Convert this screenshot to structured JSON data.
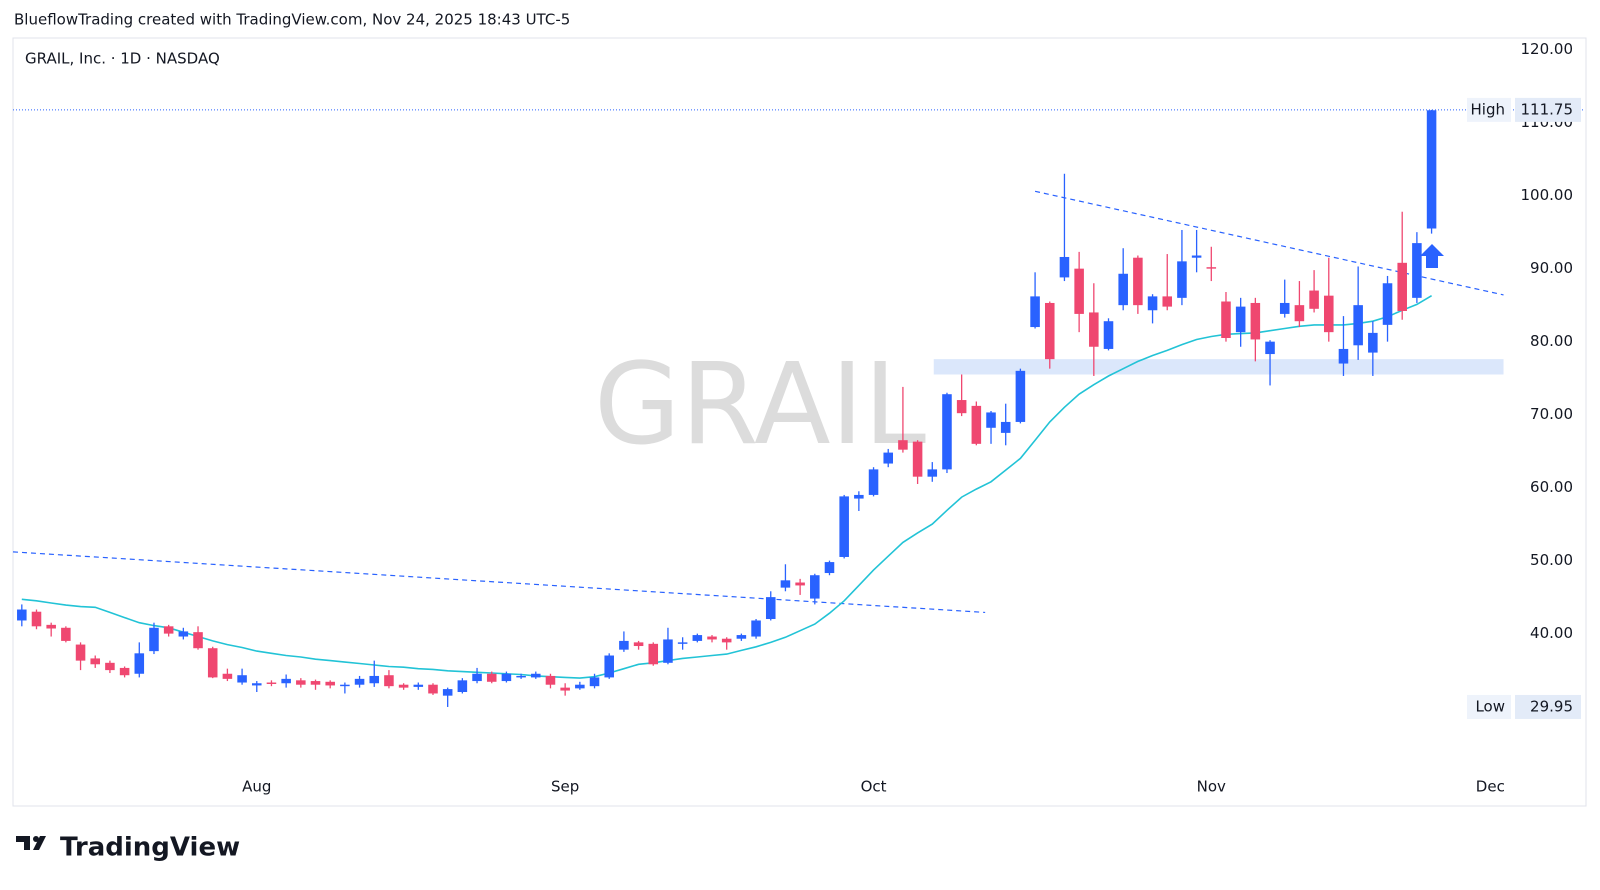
{
  "chart_data": {
    "type": "candlestick",
    "attribution": "BlueflowTrading created with TradingView.com, Nov 24, 2025 18:43 UTC-5",
    "title": "GRAIL, Inc. · 1D · NASDAQ",
    "watermark": "GRAIL",
    "branding": "TradingView",
    "up_color": "#2962ff",
    "down_color": "#ef4770",
    "open": [
      41.8,
      43,
      41.2,
      40.8,
      38.5,
      36.6,
      36,
      35.3,
      34.5,
      37.6,
      41,
      39.6,
      40.2,
      38,
      34.5,
      33.3,
      32.9,
      33.3,
      33.2,
      33.6,
      33.5,
      33.4,
      32.8,
      33,
      33.2,
      34.3,
      33,
      32.7,
      33,
      31.5,
      32,
      33.5,
      34.5,
      33.5,
      34,
      34,
      34.2,
      32.6,
      32.5,
      32.8,
      34,
      37.8,
      38.8,
      38.6,
      36,
      38.6,
      39,
      39.6,
      39.3,
      39.3,
      39.6,
      42,
      46.3,
      47,
      44.8,
      48.3,
      50.5,
      58.5,
      59,
      63.3,
      66.5,
      66.3,
      61.5,
      62.5,
      72,
      71.2,
      68.2,
      67.5,
      69,
      82,
      85.3,
      88.8,
      90,
      84,
      79,
      85,
      91.5,
      84.3,
      86.2,
      86,
      91.5,
      90.2,
      85.5,
      81.3,
      85.3,
      78.3,
      83.8,
      85,
      87,
      86.3,
      77,
      79.5,
      78.5,
      82.3,
      90.8,
      86,
      95.5
    ],
    "high": [
      44,
      43.3,
      41.5,
      41,
      38.8,
      37,
      36.3,
      35.5,
      38.8,
      41.5,
      41.2,
      40.8,
      41,
      38.2,
      35.2,
      35.2,
      33.5,
      33.6,
      34.4,
      33.9,
      33.7,
      33.6,
      33.3,
      34.2,
      36.3,
      35,
      33.2,
      33.3,
      33.2,
      32.6,
      33.9,
      35.3,
      34.8,
      34.8,
      34.5,
      34.8,
      34.5,
      33.2,
      33.4,
      34.5,
      37.3,
      40.3,
      39,
      38.8,
      40.8,
      39.5,
      40,
      39.8,
      39.5,
      40,
      42,
      45.8,
      49.5,
      47.5,
      48.2,
      50,
      59,
      59.5,
      62.8,
      65.3,
      73.8,
      66.5,
      63.5,
      73,
      75.5,
      71.8,
      70.5,
      71.5,
      76.3,
      89.5,
      85.5,
      103,
      92.3,
      88,
      83.2,
      92.8,
      91.8,
      86.5,
      92,
      95.3,
      95.3,
      93,
      86.8,
      86,
      86,
      80.2,
      88.5,
      88.3,
      89.8,
      91.5,
      83.5,
      90.3,
      82.8,
      89,
      97.8,
      95,
      111.75
    ],
    "low": [
      41,
      40.6,
      39.6,
      38.8,
      35,
      35.3,
      34.6,
      34,
      34,
      37.2,
      39.6,
      39.2,
      37.8,
      33.9,
      33.5,
      33,
      32,
      32.8,
      32.6,
      32.6,
      32.3,
      32.5,
      31.8,
      32.6,
      32.7,
      32.5,
      32.3,
      32.3,
      31.6,
      29.95,
      31.8,
      33.2,
      33.2,
      33.3,
      33.8,
      33.8,
      32.5,
      31.5,
      32.3,
      32.5,
      33.8,
      37.5,
      37.8,
      35.6,
      35.8,
      37.8,
      38.8,
      38.8,
      37.8,
      39,
      39.3,
      41.8,
      45.8,
      45.3,
      44,
      48,
      50.3,
      56.8,
      58.8,
      62.8,
      64.8,
      60.5,
      60.8,
      62,
      69.8,
      65.8,
      66,
      65.8,
      68.8,
      81.8,
      76.3,
      88.3,
      81.3,
      75.3,
      78.8,
      84.3,
      83.8,
      82.5,
      84.3,
      85,
      89.5,
      88.3,
      80,
      79.3,
      77.3,
      74,
      83.3,
      82,
      84,
      80,
      75.3,
      77.5,
      75.3,
      80,
      83,
      85.3,
      94.8
    ],
    "close": [
      43.3,
      41,
      40.7,
      39,
      36.3,
      35.8,
      35,
      34.3,
      37.3,
      40.8,
      40,
      40.3,
      38,
      34,
      33.8,
      34.3,
      33.2,
      33.1,
      33.8,
      33,
      33,
      32.9,
      33,
      33.8,
      34.2,
      32.8,
      32.6,
      33,
      31.8,
      32.4,
      33.6,
      34.5,
      33.4,
      34.5,
      34.2,
      34.5,
      33,
      32.2,
      33,
      34,
      37,
      39,
      38.3,
      35.8,
      39.2,
      38.8,
      39.8,
      39.2,
      38.8,
      39.8,
      41.8,
      45,
      47.3,
      46.6,
      48,
      49.8,
      58.8,
      59,
      62.5,
      64.8,
      65.2,
      61.5,
      62.5,
      72.8,
      70.2,
      66,
      70.3,
      69,
      76,
      86.2,
      77.6,
      91.6,
      83.8,
      79.3,
      82.8,
      89.3,
      85,
      86.2,
      84.8,
      91,
      91.8,
      90,
      80.5,
      84.8,
      80.3,
      80,
      85.3,
      82.8,
      84.5,
      81.3,
      79,
      85,
      81.2,
      88,
      84.2,
      93.5,
      111.7
    ],
    "overlays": [
      {
        "color": "#22c3d6",
        "values": [
          44.7,
          44.5,
          44.2,
          43.9,
          43.7,
          43.6,
          42.9,
          42.2,
          41.5,
          41.1,
          40.8,
          40.2,
          39.6,
          39,
          38.5,
          38.1,
          37.6,
          37.3,
          37.0,
          36.8,
          36.5,
          36.3,
          36.1,
          35.9,
          35.7,
          35.5,
          35.4,
          35.2,
          35.1,
          34.9,
          34.8,
          34.7,
          34.6,
          34.5,
          34.4,
          34.2,
          34.1,
          34.0,
          33.9,
          34.1,
          34.6,
          35.2,
          35.8,
          36.0,
          36.3,
          36.6,
          36.8,
          37.0,
          37.2,
          37.7,
          38.2,
          38.8,
          39.5,
          40.4,
          41.3,
          42.8,
          44.5,
          46.6,
          48.7,
          50.6,
          52.5,
          53.8,
          55,
          56.9,
          58.7,
          59.8,
          60.8,
          62.4,
          64,
          66.5,
          69,
          71,
          72.8,
          74.1,
          75.3,
          76.3,
          77.3,
          78.1,
          78.8,
          79.6,
          80.3,
          80.7,
          81,
          81.1,
          81.2,
          81.5,
          81.8,
          82.1,
          82.3,
          82.3,
          82.3,
          82.5,
          82.8,
          83.4,
          84.3,
          85.1,
          86.3
        ]
      }
    ],
    "trendlines": [
      {
        "color": "#2962ff",
        "x": [
          69,
          100.9
        ],
        "y": [
          100.6,
          86.4
        ]
      },
      {
        "color": "#2962ff",
        "x": [
          -0.6,
          65.6
        ],
        "y": [
          51.2,
          42.9
        ]
      }
    ],
    "zones": [
      {
        "color": "#dbe7fb",
        "x": [
          62.1,
          100.9
        ],
        "y": [
          75.5,
          77.6
        ]
      }
    ],
    "high_label": {
      "label": "High",
      "value": 111.75
    },
    "low_label": {
      "label": "Low",
      "value": 29.95
    },
    "xlim": [
      -0.6,
      101
    ],
    "xticks": [
      {
        "value": 16,
        "label": "Aug"
      },
      {
        "value": 37,
        "label": "Sep"
      },
      {
        "value": 58,
        "label": "Oct"
      },
      {
        "value": 81,
        "label": "Nov"
      },
      {
        "value": 100,
        "label": "Dec"
      }
    ],
    "ylim": [
      22,
      121.6
    ],
    "yticks": [
      {
        "value": 40,
        "label": "40.00"
      },
      {
        "value": 50,
        "label": "50.00"
      },
      {
        "value": 60,
        "label": "60.00"
      },
      {
        "value": 70,
        "label": "70.00"
      },
      {
        "value": 80,
        "label": "80.00"
      },
      {
        "value": 90,
        "label": "90.00"
      },
      {
        "value": 100,
        "label": "100.00"
      },
      {
        "value": 110,
        "label": "110.00"
      },
      {
        "value": 120,
        "label": "120.00"
      }
    ]
  }
}
